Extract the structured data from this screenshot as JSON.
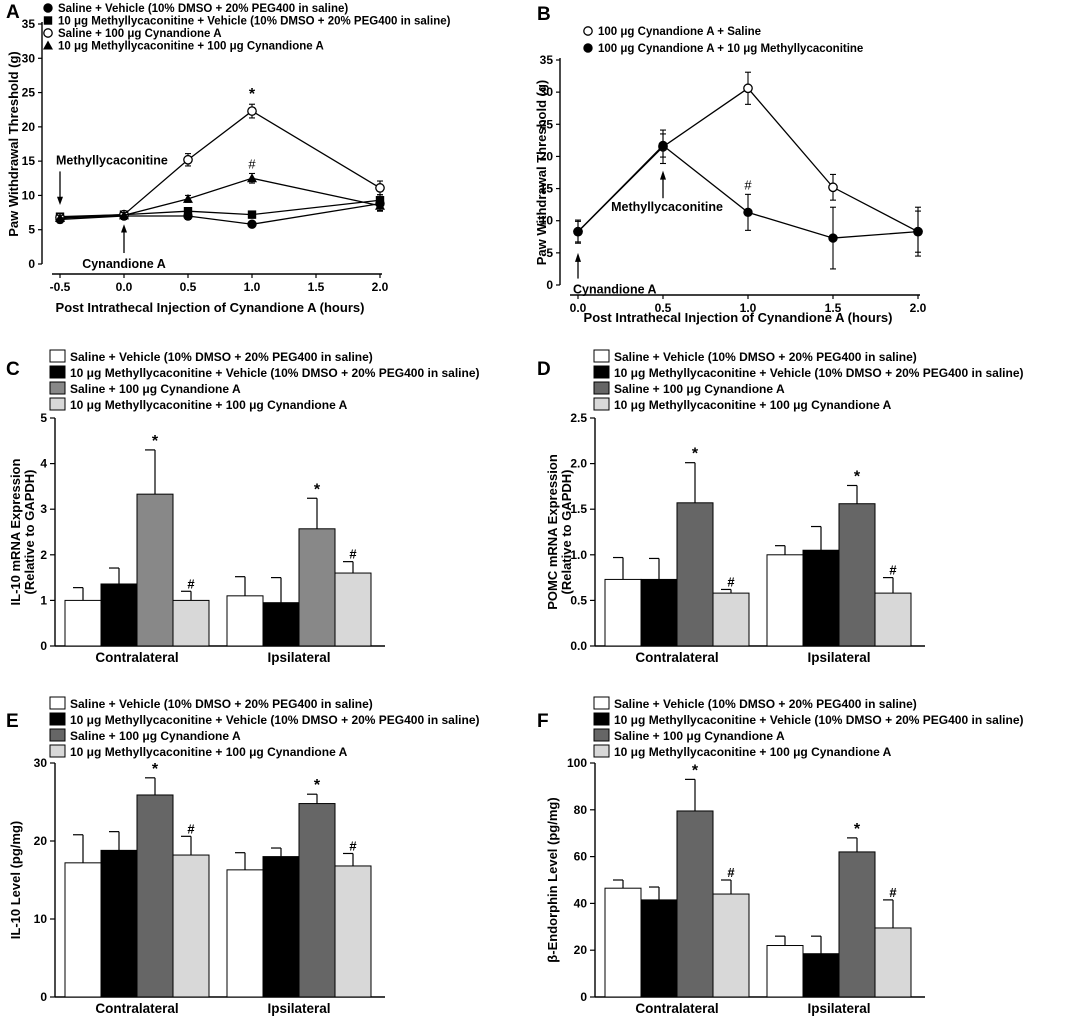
{
  "chart_data": [
    {
      "panel": "A",
      "type": "line",
      "xlabel": "Post Intrathecal Injection of Cynandione A (hours)",
      "ylabel": "Paw Withdrawal Threshold (g)",
      "xlim": [
        -0.5,
        2.0
      ],
      "ylim": [
        0,
        35
      ],
      "xticks": [
        "-0.5",
        "0.0",
        "0.5",
        "1.0",
        "1.5",
        "2.0"
      ],
      "yticks": [
        "0",
        "5",
        "10",
        "15",
        "20",
        "25",
        "30",
        "35"
      ],
      "series": [
        {
          "name": "Saline + Vehicle (10% DMSO + 20% PEG400 in saline)",
          "marker": "filled-circle",
          "x": [
            -0.5,
            0.0,
            0.5,
            1.0,
            2.0
          ],
          "y": [
            6.5,
            7.0,
            7.0,
            5.8,
            8.8
          ],
          "err": [
            0.5,
            0.5,
            0.5,
            0.4,
            1.0
          ]
        },
        {
          "name": "10 μg Methyllycaconitine + Vehicle (10% DMSO + 20% PEG400 in saline)",
          "marker": "filled-square",
          "x": [
            -0.5,
            0.0,
            0.5,
            1.0,
            2.0
          ],
          "y": [
            6.9,
            7.2,
            7.7,
            7.2,
            9.3
          ],
          "err": [
            0.5,
            0.5,
            0.5,
            0.5,
            0.8
          ]
        },
        {
          "name": "Saline + 100 μg Cynandione A",
          "marker": "open-circle",
          "x": [
            -0.5,
            0.0,
            0.5,
            1.0,
            2.0
          ],
          "y": [
            6.8,
            7.2,
            15.2,
            22.3,
            11.1
          ],
          "err": [
            0.4,
            0.5,
            0.9,
            1.0,
            1.0
          ]
        },
        {
          "name": "10 μg Methyllycaconitine + 100 μg Cynandione A",
          "marker": "filled-triangle",
          "x": [
            -0.5,
            0.0,
            0.5,
            1.0,
            2.0
          ],
          "y": [
            6.7,
            7.1,
            9.5,
            12.5,
            8.5
          ],
          "err": [
            0.4,
            0.4,
            0.5,
            0.7,
            0.8
          ]
        }
      ],
      "annotations": {
        "star": "*",
        "hash": "#",
        "arrow_label_1": "Methyllycaconitine",
        "arrow_label_2": "Cynandione A"
      }
    },
    {
      "panel": "B",
      "type": "line",
      "xlabel": "Post Intrathecal Injection of Cynandione A (hours)",
      "ylabel": "Paw Withdrawal Threshold (g)",
      "xlim": [
        0.0,
        2.0
      ],
      "ylim": [
        0,
        35
      ],
      "xticks": [
        "0.0",
        "0.5",
        "1.0",
        "1.5",
        "2.0"
      ],
      "yticks": [
        "0",
        "5",
        "10",
        "15",
        "20",
        "25",
        "30",
        "35"
      ],
      "series": [
        {
          "name": "100 μg Cynandione A + Saline",
          "marker": "open-circle",
          "x": [
            0.0,
            0.5,
            1.0,
            1.5,
            2.0
          ],
          "y": [
            8.3,
            21.5,
            30.6,
            15.2,
            8.3
          ],
          "err": [
            1.8,
            2.6,
            2.5,
            2.0,
            3.8
          ]
        },
        {
          "name": "100 μg Cynandione A + 10 μg Methyllycaconitine",
          "marker": "filled-circle",
          "x": [
            0.0,
            0.5,
            1.0,
            1.5,
            2.0
          ],
          "y": [
            8.3,
            21.7,
            11.3,
            7.3,
            8.3
          ],
          "err": [
            1.6,
            1.8,
            2.8,
            4.8,
            3.2
          ]
        }
      ],
      "annotations": {
        "hash": "#",
        "arrow_label_1": "Methyllycaconitine",
        "arrow_label_2": "Cynandione A"
      }
    },
    {
      "panel": "C",
      "type": "bar",
      "ylabel": "IL-10 mRNA Expression",
      "ylabel2": "(Relative to GAPDH)",
      "ylim": [
        0,
        5
      ],
      "yticks": [
        "0",
        "1",
        "2",
        "3",
        "4",
        "5"
      ],
      "categories": [
        "Contralateral",
        "Ipsilateral"
      ],
      "series": [
        {
          "name": "Saline + Vehicle (10% DMSO + 20% PEG400 in saline)",
          "color": "#ffffff",
          "values": [
            1.0,
            1.1
          ],
          "err": [
            0.28,
            0.42
          ],
          "marks": [
            "",
            ""
          ]
        },
        {
          "name": "10 μg Methyllycaconitine + Vehicle (10% DMSO + 20% PEG400 in saline)",
          "color": "#000000",
          "values": [
            1.36,
            0.95
          ],
          "err": [
            0.35,
            0.55
          ],
          "marks": [
            "",
            ""
          ]
        },
        {
          "name": "Saline + 100 μg Cynandione A",
          "color": "#888888",
          "values": [
            3.33,
            2.57
          ],
          "err": [
            0.97,
            0.67
          ],
          "marks": [
            "*",
            "*"
          ]
        },
        {
          "name": "10 μg Methyllycaconitine + 100 μg Cynandione A",
          "color": "#d8d8d8",
          "values": [
            1.0,
            1.6
          ],
          "err": [
            0.2,
            0.25
          ],
          "marks": [
            "#",
            "#"
          ]
        }
      ]
    },
    {
      "panel": "D",
      "type": "bar",
      "ylabel": "POMC mRNA Expression",
      "ylabel2": "(Relative to GAPDH)",
      "ylim": [
        0,
        2.5
      ],
      "yticks": [
        "0.0",
        "0.5",
        "1.0",
        "1.5",
        "2.0",
        "2.5"
      ],
      "categories": [
        "Contralateral",
        "Ipsilateral"
      ],
      "series": [
        {
          "name": "Saline + Vehicle (10% DMSO + 20% PEG400 in saline)",
          "color": "#ffffff",
          "values": [
            0.73,
            1.0
          ],
          "err": [
            0.24,
            0.1
          ],
          "marks": [
            "",
            ""
          ]
        },
        {
          "name": "10 μg Methyllycaconitine + Vehicle (10% DMSO + 20% PEG400 in saline)",
          "color": "#000000",
          "values": [
            0.73,
            1.05
          ],
          "err": [
            0.23,
            0.26
          ],
          "marks": [
            "",
            ""
          ]
        },
        {
          "name": "Saline + 100 μg Cynandione A",
          "color": "#666666",
          "values": [
            1.57,
            1.56
          ],
          "err": [
            0.44,
            0.2
          ],
          "marks": [
            "*",
            "*"
          ]
        },
        {
          "name": "10 μg Methyllycaconitine + 100 μg Cynandione A",
          "color": "#d8d8d8",
          "values": [
            0.58,
            0.58
          ],
          "err": [
            0.04,
            0.17
          ],
          "marks": [
            "#",
            "#"
          ]
        }
      ]
    },
    {
      "panel": "E",
      "type": "bar",
      "ylabel": "IL-10 Level (pg/mg)",
      "ylabel2": "",
      "ylim": [
        0,
        30
      ],
      "yticks": [
        "0",
        "10",
        "20",
        "30"
      ],
      "categories": [
        "Contralateral",
        "Ipsilateral"
      ],
      "series": [
        {
          "name": "Saline + Vehicle (10% DMSO + 20% PEG400 in saline)",
          "color": "#ffffff",
          "values": [
            17.2,
            16.3
          ],
          "err": [
            3.6,
            2.2
          ],
          "marks": [
            "",
            ""
          ]
        },
        {
          "name": "10 μg Methyllycaconitine + Vehicle (10% DMSO + 20% PEG400 in saline)",
          "color": "#000000",
          "values": [
            18.8,
            18.0
          ],
          "err": [
            2.4,
            1.1
          ],
          "marks": [
            "",
            ""
          ]
        },
        {
          "name": "Saline + 100 μg Cynandione A",
          "color": "#666666",
          "values": [
            25.9,
            24.8
          ],
          "err": [
            2.2,
            1.2
          ],
          "marks": [
            "*",
            "*"
          ]
        },
        {
          "name": "10 μg Methyllycaconitine + 100 μg Cynandione A",
          "color": "#d8d8d8",
          "values": [
            18.2,
            16.8
          ],
          "err": [
            2.4,
            1.6
          ],
          "marks": [
            "#",
            "#"
          ]
        }
      ]
    },
    {
      "panel": "F",
      "type": "bar",
      "ylabel": "β-Endorphin Level (pg/mg)",
      "ylabel2": "",
      "ylim": [
        0,
        100
      ],
      "yticks": [
        "0",
        "20",
        "40",
        "60",
        "80",
        "100"
      ],
      "categories": [
        "Contralateral",
        "Ipsilateral"
      ],
      "series": [
        {
          "name": "Saline + Vehicle (10% DMSO + 20% PEG400 in saline)",
          "color": "#ffffff",
          "values": [
            46.5,
            22.0
          ],
          "err": [
            3.5,
            4.0
          ],
          "marks": [
            "",
            ""
          ]
        },
        {
          "name": "10 μg Methyllycaconitine + Vehicle (10% DMSO + 20% PEG400 in saline)",
          "color": "#000000",
          "values": [
            41.5,
            18.5
          ],
          "err": [
            5.5,
            7.5
          ],
          "marks": [
            "",
            ""
          ]
        },
        {
          "name": "Saline + 100 μg Cynandione A",
          "color": "#666666",
          "values": [
            79.5,
            62.0
          ],
          "err": [
            13.5,
            6.0
          ],
          "marks": [
            "*",
            "*"
          ]
        },
        {
          "name": "10 μg Methyllycaconitine + 100 μg Cynandione A",
          "color": "#d8d8d8",
          "values": [
            44.0,
            29.5
          ],
          "err": [
            6.0,
            12.0
          ],
          "marks": [
            "#",
            "#"
          ]
        }
      ]
    }
  ]
}
